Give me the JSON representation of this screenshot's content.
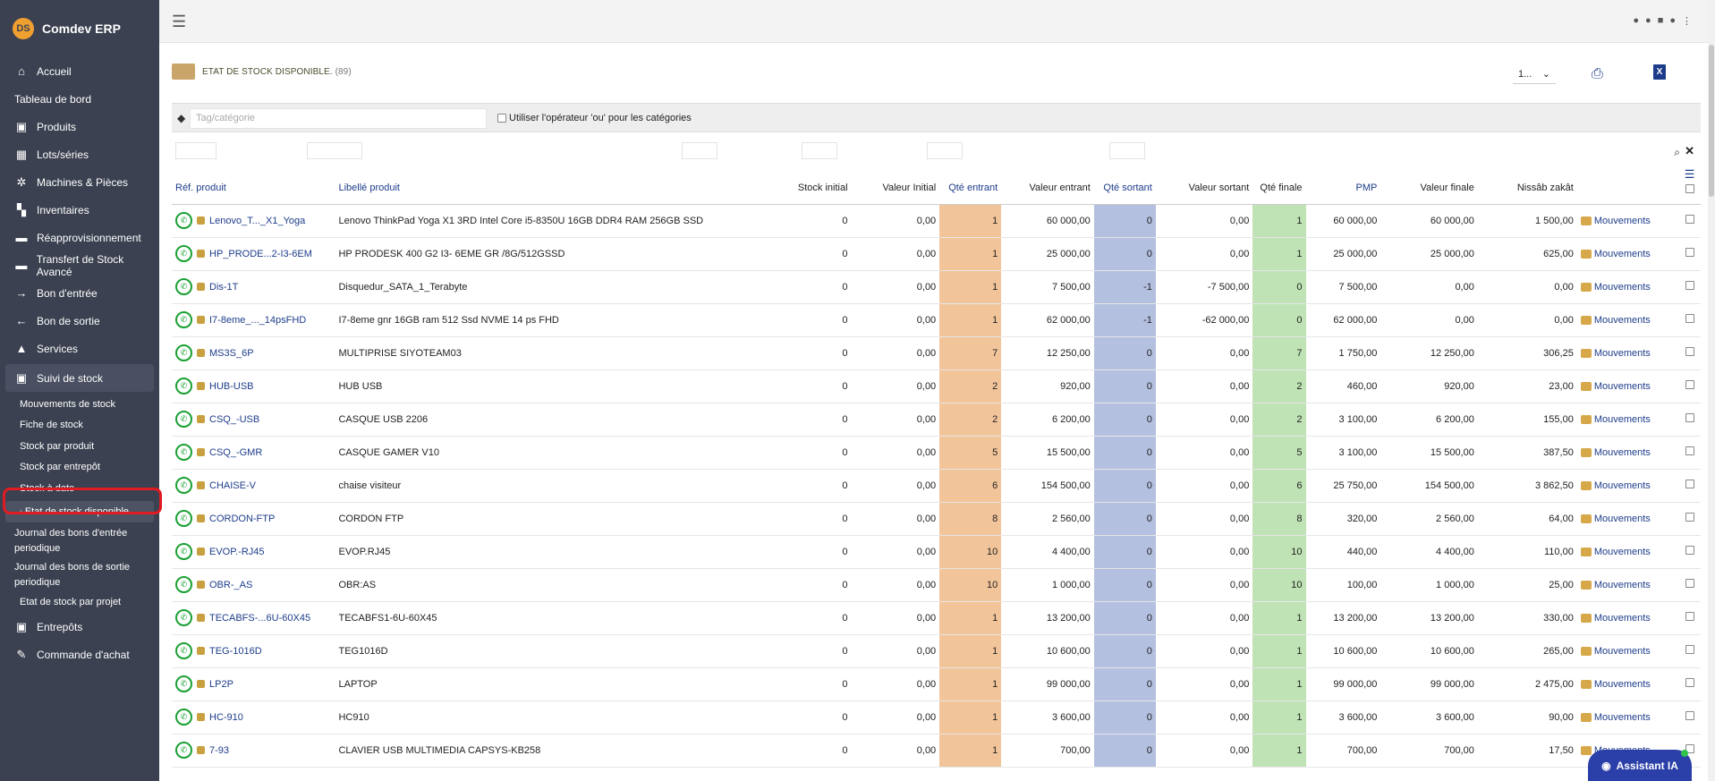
{
  "app": {
    "name": "Comdev ERP",
    "logo_text": "DS"
  },
  "sidebar": {
    "items": [
      {
        "label": "Accueil",
        "icon": "home-icon",
        "glyph": "⌂"
      },
      {
        "label": "Tableau de bord",
        "icon": "",
        "glyph": ""
      },
      {
        "label": "Produits",
        "icon": "cube-icon",
        "glyph": "▣"
      },
      {
        "label": "Lots/séries",
        "icon": "barcode-icon",
        "glyph": "▦"
      },
      {
        "label": "Machines & Pièces",
        "icon": "cogs-icon",
        "glyph": "✲"
      },
      {
        "label": "Inventaires",
        "icon": "boxes-icon",
        "glyph": "▚"
      },
      {
        "label": "Réapprovisionnement",
        "icon": "truck-icon",
        "glyph": "▬"
      },
      {
        "label": "Transfert de Stock Avancé",
        "icon": "truck-icon",
        "glyph": "▬"
      },
      {
        "label": "Bon d'entrée",
        "icon": "arrow-right-icon",
        "glyph": "→"
      },
      {
        "label": "Bon de sortie",
        "icon": "arrow-left-icon",
        "glyph": "←"
      },
      {
        "label": "Services",
        "icon": "bell-icon",
        "glyph": "▲"
      },
      {
        "label": "Suivi de stock",
        "icon": "boxes-icon",
        "glyph": "▣"
      }
    ],
    "subitems": [
      "Mouvements de stock",
      "Fiche de stock",
      "Stock par produit",
      "Stock par entrepôt",
      "Stock à date",
      "Etat de stock disponible.",
      "Journal des bons d'entrée periodique",
      "Journal des bons de sortie periodique",
      "Etat de stock par projet"
    ],
    "after": [
      {
        "label": "Entrepôts",
        "icon": "warehouse-icon",
        "glyph": "▣"
      },
      {
        "label": "Commande d'achat",
        "icon": "cart-icon",
        "glyph": "✎"
      }
    ]
  },
  "page": {
    "title": "ETAT DE STOCK DISPONIBLE.",
    "count": "(89)",
    "page_select": "1...",
    "tag_placeholder": "Tag/catégorie",
    "or_operator_label": "Utiliser l'opérateur 'ou' pour les catégories",
    "assistant_label": "Assistant IA"
  },
  "columns": [
    "Réf. produit",
    "Libellé produit",
    "Stock initial",
    "Valeur Initial",
    "Qté entrant",
    "Valeur entrant",
    "Qté sortant",
    "Valeur sortant",
    "Qté finale",
    "PMP",
    "Valeur finale",
    "Nissâb zakât"
  ],
  "movement_label": "Mouvements",
  "rows": [
    {
      "ref": "Lenovo_T..._X1_Yoga",
      "label": "Lenovo ThinkPad Yoga X1 3RD Intel Core i5-8350U 16GB DDR4 RAM 256GB SSD",
      "si": "0",
      "vi": "0,00",
      "qe": "1",
      "ve": "60 000,00",
      "qs": "0",
      "vs": "0,00",
      "qf": "1",
      "pmp": "60 000,00",
      "vf": "60 000,00",
      "nz": "1 500,00"
    },
    {
      "ref": "HP_PRODE...2-I3-6EM",
      "label": "HP PRODESK 400 G2 I3- 6EME GR /8G/512GSSD",
      "si": "0",
      "vi": "0,00",
      "qe": "1",
      "ve": "25 000,00",
      "qs": "0",
      "vs": "0,00",
      "qf": "1",
      "pmp": "25 000,00",
      "vf": "25 000,00",
      "nz": "625,00"
    },
    {
      "ref": "Dis-1T",
      "label": "Disquedur_SATA_1_Terabyte",
      "si": "0",
      "vi": "0,00",
      "qe": "1",
      "ve": "7 500,00",
      "qs": "-1",
      "vs": "-7 500,00",
      "qf": "0",
      "pmp": "7 500,00",
      "vf": "0,00",
      "nz": "0,00"
    },
    {
      "ref": "I7-8eme_..._14psFHD",
      "label": "I7-8eme gnr 16GB ram 512 Ssd NVME 14 ps FHD",
      "si": "0",
      "vi": "0,00",
      "qe": "1",
      "ve": "62 000,00",
      "qs": "-1",
      "vs": "-62 000,00",
      "qf": "0",
      "pmp": "62 000,00",
      "vf": "0,00",
      "nz": "0,00"
    },
    {
      "ref": "MS3S_6P",
      "label": "MULTIPRISE SIYOTEAM03",
      "si": "0",
      "vi": "0,00",
      "qe": "7",
      "ve": "12 250,00",
      "qs": "0",
      "vs": "0,00",
      "qf": "7",
      "pmp": "1 750,00",
      "vf": "12 250,00",
      "nz": "306,25"
    },
    {
      "ref": "HUB-USB",
      "label": "HUB USB",
      "si": "0",
      "vi": "0,00",
      "qe": "2",
      "ve": "920,00",
      "qs": "0",
      "vs": "0,00",
      "qf": "2",
      "pmp": "460,00",
      "vf": "920,00",
      "nz": "23,00"
    },
    {
      "ref": "CSQ_-USB",
      "label": "CASQUE USB 2206",
      "si": "0",
      "vi": "0,00",
      "qe": "2",
      "ve": "6 200,00",
      "qs": "0",
      "vs": "0,00",
      "qf": "2",
      "pmp": "3 100,00",
      "vf": "6 200,00",
      "nz": "155,00"
    },
    {
      "ref": "CSQ_-GMR",
      "label": "CASQUE GAMER V10",
      "si": "0",
      "vi": "0,00",
      "qe": "5",
      "ve": "15 500,00",
      "qs": "0",
      "vs": "0,00",
      "qf": "5",
      "pmp": "3 100,00",
      "vf": "15 500,00",
      "nz": "387,50"
    },
    {
      "ref": "CHAISE-V",
      "label": "chaise visiteur",
      "si": "0",
      "vi": "0,00",
      "qe": "6",
      "ve": "154 500,00",
      "qs": "0",
      "vs": "0,00",
      "qf": "6",
      "pmp": "25 750,00",
      "vf": "154 500,00",
      "nz": "3 862,50"
    },
    {
      "ref": "CORDON-FTP",
      "label": "CORDON FTP",
      "si": "0",
      "vi": "0,00",
      "qe": "8",
      "ve": "2 560,00",
      "qs": "0",
      "vs": "0,00",
      "qf": "8",
      "pmp": "320,00",
      "vf": "2 560,00",
      "nz": "64,00"
    },
    {
      "ref": "EVOP.-RJ45",
      "label": "EVOP.RJ45",
      "si": "0",
      "vi": "0,00",
      "qe": "10",
      "ve": "4 400,00",
      "qs": "0",
      "vs": "0,00",
      "qf": "10",
      "pmp": "440,00",
      "vf": "4 400,00",
      "nz": "110,00"
    },
    {
      "ref": "OBR-_AS",
      "label": "OBR:AS",
      "si": "0",
      "vi": "0,00",
      "qe": "10",
      "ve": "1 000,00",
      "qs": "0",
      "vs": "0,00",
      "qf": "10",
      "pmp": "100,00",
      "vf": "1 000,00",
      "nz": "25,00"
    },
    {
      "ref": "TECABFS-...6U-60X45",
      "label": "TECABFS1-6U-60X45",
      "si": "0",
      "vi": "0,00",
      "qe": "1",
      "ve": "13 200,00",
      "qs": "0",
      "vs": "0,00",
      "qf": "1",
      "pmp": "13 200,00",
      "vf": "13 200,00",
      "nz": "330,00"
    },
    {
      "ref": "TEG-1016D",
      "label": "TEG1016D",
      "si": "0",
      "vi": "0,00",
      "qe": "1",
      "ve": "10 600,00",
      "qs": "0",
      "vs": "0,00",
      "qf": "1",
      "pmp": "10 600,00",
      "vf": "10 600,00",
      "nz": "265,00"
    },
    {
      "ref": "LP2P",
      "label": "LAPTOP",
      "si": "0",
      "vi": "0,00",
      "qe": "1",
      "ve": "99 000,00",
      "qs": "0",
      "vs": "0,00",
      "qf": "1",
      "pmp": "99 000,00",
      "vf": "99 000,00",
      "nz": "2 475,00"
    },
    {
      "ref": "HC-910",
      "label": "HC910",
      "si": "0",
      "vi": "0,00",
      "qe": "1",
      "ve": "3 600,00",
      "qs": "0",
      "vs": "0,00",
      "qf": "1",
      "pmp": "3 600,00",
      "vf": "3 600,00",
      "nz": "90,00"
    },
    {
      "ref": "7-93",
      "label": "CLAVIER USB MULTIMEDIA CAPSYS-KB258",
      "si": "0",
      "vi": "0,00",
      "qe": "1",
      "ve": "700,00",
      "qs": "0",
      "vs": "0,00",
      "qf": "1",
      "pmp": "700,00",
      "vf": "700,00",
      "nz": "17,50"
    }
  ]
}
